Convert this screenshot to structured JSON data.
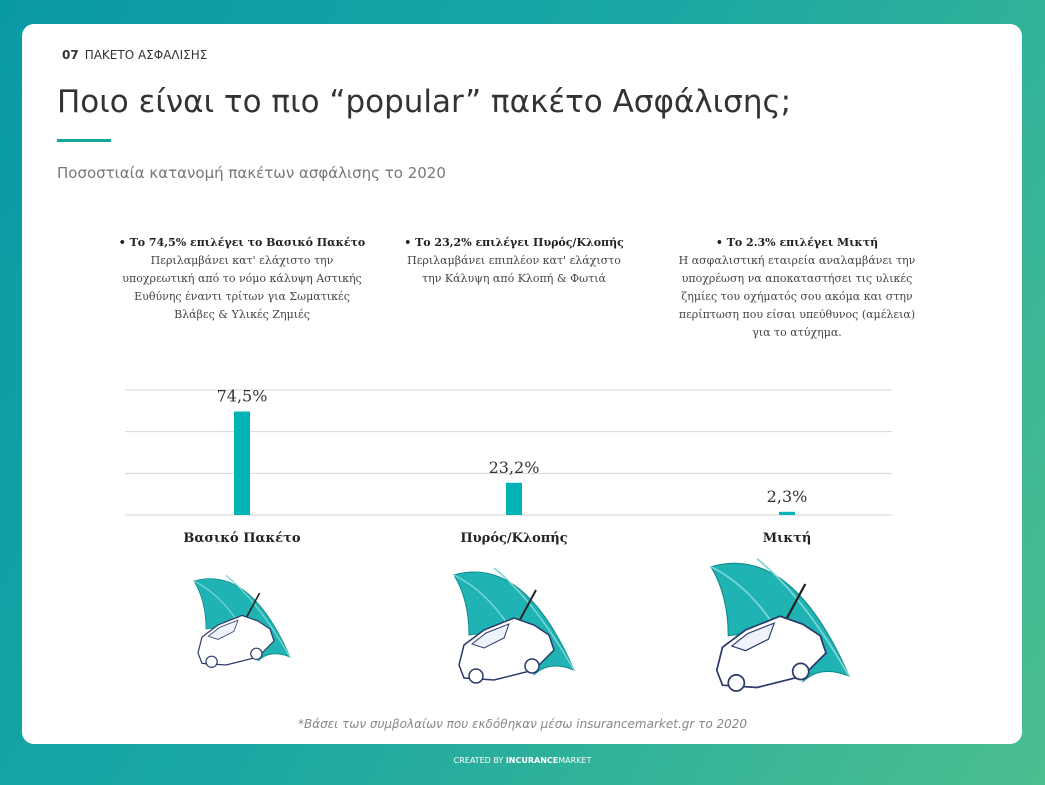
{
  "section_number": "07",
  "section_title": "ΠΑΚΕΤΟ ΑΣΦΑΛΙΣΗΣ",
  "title": "Ποιο είναι το πιο “popular” πακέτο Ασφάλισης;",
  "subtitle": "Ποσοστιαία κατανομή πακέτων ασφάλισης το 2020",
  "notes": [
    {
      "heading": "• Το 74,5% επιλέγει το Βασικό Πακέτο",
      "lines": [
        "Περιλαμβάνει κατ' ελάχιστο την",
        "υποχρεωτική από το νόμο κάλυψη Αστικής",
        "Ευθύνης έναντι τρίτων για Σωματικές",
        "Βλάβες & Υλικές Ζημιές"
      ]
    },
    {
      "heading": "•  Το 23,2% επιλέγει Πυρός/Κλοπής",
      "lines": [
        "Περιλαμβάνει επιπλέον κατ' ελάχιστο",
        "την Κάλυψη από Κλοπή & Φωτιά"
      ]
    },
    {
      "heading": "• Το 2.3% επιλέγει Μικτή",
      "lines": [
        "Η ασφαλιστική εταιρεία αναλαμβάνει την",
        "υποχρέωση να αποκαταστήσει τις υλικές",
        "ζημίες του οχήματός σου ακόμα και στην",
        "περίπτωση που είσαι υπεύθυνος (αμέλεια)",
        "για το ατύχημα."
      ]
    }
  ],
  "chart_data": {
    "type": "bar",
    "categories": [
      "Βασικό Πακέτο",
      "Πυρός/Κλοπής",
      "Μικτή"
    ],
    "values": [
      74.5,
      23.2,
      2.3
    ],
    "value_labels": [
      "74,5%",
      "23,2%",
      "2,3%"
    ],
    "color": "#00b3b5",
    "ylim": [
      0,
      90
    ],
    "yticks": [
      0,
      30,
      60,
      90
    ],
    "grid": true
  },
  "footnote": "*Βάσει των συμβολαίων που εκδόθηκαν μέσω insurancemarket.gr το 2020",
  "credit": {
    "prefix": "CREATED BY",
    "brand_bold": "INCURANCE",
    "brand": "MARKET"
  }
}
